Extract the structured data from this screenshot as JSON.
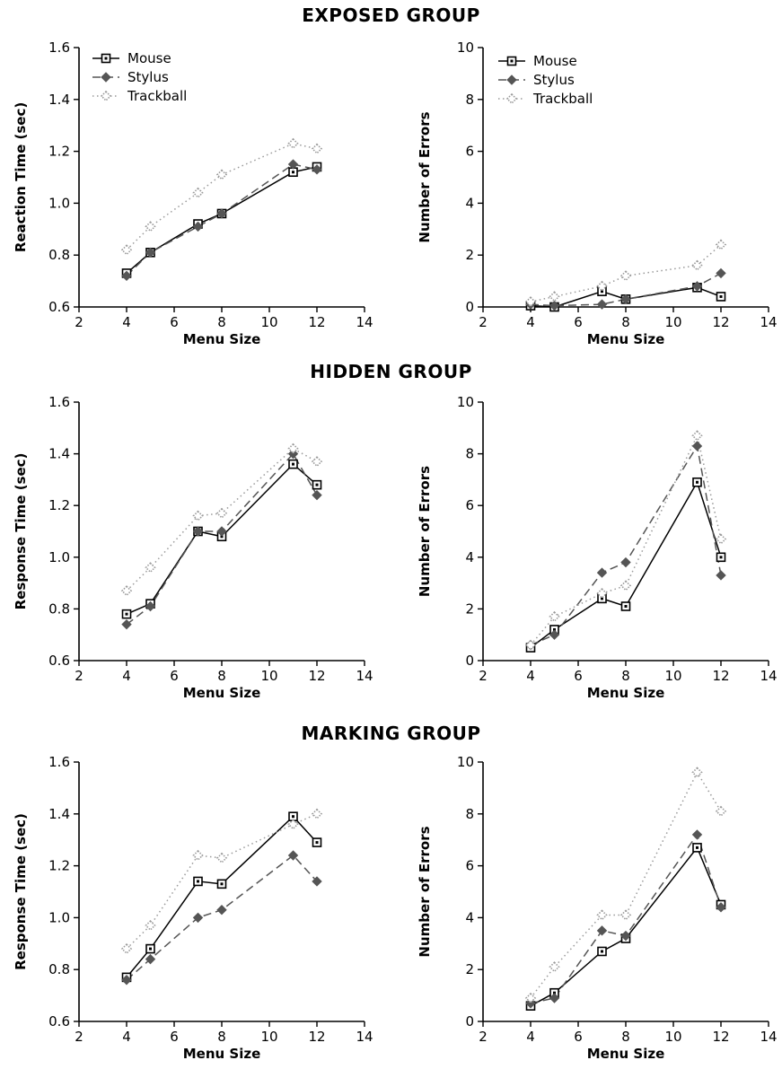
{
  "groups": [
    {
      "title": "EXPOSED GROUP"
    },
    {
      "title": "HIDDEN GROUP"
    },
    {
      "title": "MARKING GROUP"
    }
  ],
  "chart_data": [
    {
      "type": "line",
      "group": "EXPOSED GROUP",
      "xlabel": "Menu Size",
      "ylabel": "Reaction Time (sec)",
      "xlim": [
        2,
        14
      ],
      "ylim": [
        0.6,
        1.6
      ],
      "xticks": [
        "2",
        "4",
        "6",
        "8",
        "10",
        "12",
        "14"
      ],
      "yticks": [
        "0.6",
        "0.8",
        "1.0",
        "1.2",
        "1.4",
        "1.6"
      ],
      "legend": "top-left",
      "x": [
        4,
        5,
        7,
        8,
        11,
        12
      ],
      "series": [
        {
          "name": "Mouse",
          "style": "solid",
          "marker": "square",
          "values": [
            0.73,
            0.81,
            0.92,
            0.96,
            1.12,
            1.14
          ]
        },
        {
          "name": "Stylus",
          "style": "dashed",
          "marker": "diamond",
          "values": [
            0.72,
            0.81,
            0.91,
            0.96,
            1.15,
            1.13
          ]
        },
        {
          "name": "Trackball",
          "style": "dotted",
          "marker": "dotted-diamond",
          "values": [
            0.82,
            0.91,
            1.04,
            1.11,
            1.23,
            1.21
          ]
        }
      ]
    },
    {
      "type": "line",
      "group": "EXPOSED GROUP",
      "xlabel": "Menu Size",
      "ylabel": "Number of Errors",
      "xlim": [
        2,
        14
      ],
      "ylim": [
        0,
        10
      ],
      "xticks": [
        "2",
        "4",
        "6",
        "8",
        "10",
        "12",
        "14"
      ],
      "yticks": [
        "0",
        "2",
        "4",
        "6",
        "8",
        "10"
      ],
      "legend": "top-left",
      "x": [
        4,
        5,
        7,
        8,
        11,
        12
      ],
      "series": [
        {
          "name": "Mouse",
          "style": "solid",
          "marker": "square",
          "values": [
            0.05,
            0.0,
            0.6,
            0.3,
            0.75,
            0.4
          ]
        },
        {
          "name": "Stylus",
          "style": "dashed",
          "marker": "diamond",
          "values": [
            0.1,
            0.05,
            0.1,
            0.3,
            0.8,
            1.3
          ]
        },
        {
          "name": "Trackball",
          "style": "dotted",
          "marker": "dotted-diamond",
          "values": [
            0.2,
            0.4,
            0.8,
            1.2,
            1.6,
            2.4
          ]
        }
      ]
    },
    {
      "type": "line",
      "group": "HIDDEN GROUP",
      "xlabel": "Menu Size",
      "ylabel": "Response Time (sec)",
      "xlim": [
        2,
        14
      ],
      "ylim": [
        0.6,
        1.6
      ],
      "xticks": [
        "2",
        "4",
        "6",
        "8",
        "10",
        "12",
        "14"
      ],
      "yticks": [
        "0.6",
        "0.8",
        "1.0",
        "1.2",
        "1.4",
        "1.6"
      ],
      "legend": "none",
      "x": [
        4,
        5,
        7,
        8,
        11,
        12
      ],
      "series": [
        {
          "name": "Mouse",
          "style": "solid",
          "marker": "square",
          "values": [
            0.78,
            0.82,
            1.1,
            1.08,
            1.36,
            1.28
          ]
        },
        {
          "name": "Stylus",
          "style": "dashed",
          "marker": "diamond",
          "values": [
            0.74,
            0.81,
            1.1,
            1.1,
            1.4,
            1.24
          ]
        },
        {
          "name": "Trackball",
          "style": "dotted",
          "marker": "dotted-diamond",
          "values": [
            0.87,
            0.96,
            1.16,
            1.17,
            1.42,
            1.37
          ]
        }
      ]
    },
    {
      "type": "line",
      "group": "HIDDEN GROUP",
      "xlabel": "Menu Size",
      "ylabel": "Number of Errors",
      "xlim": [
        2,
        14
      ],
      "ylim": [
        0,
        10
      ],
      "xticks": [
        "2",
        "4",
        "6",
        "8",
        "10",
        "12",
        "14"
      ],
      "yticks": [
        "0",
        "2",
        "4",
        "6",
        "8",
        "10"
      ],
      "legend": "none",
      "x": [
        4,
        5,
        7,
        8,
        11,
        12
      ],
      "series": [
        {
          "name": "Mouse",
          "style": "solid",
          "marker": "square",
          "values": [
            0.5,
            1.2,
            2.4,
            2.1,
            6.9,
            4.0
          ]
        },
        {
          "name": "Stylus",
          "style": "dashed",
          "marker": "diamond",
          "values": [
            0.6,
            1.0,
            3.4,
            3.8,
            8.3,
            3.3
          ]
        },
        {
          "name": "Trackball",
          "style": "dotted",
          "marker": "dotted-diamond",
          "values": [
            0.6,
            1.7,
            2.6,
            2.9,
            8.7,
            4.7
          ]
        }
      ]
    },
    {
      "type": "line",
      "group": "MARKING GROUP",
      "xlabel": "Menu Size",
      "ylabel": "Response Time (sec)",
      "xlim": [
        2,
        14
      ],
      "ylim": [
        0.6,
        1.6
      ],
      "xticks": [
        "2",
        "4",
        "6",
        "8",
        "10",
        "12",
        "14"
      ],
      "yticks": [
        "0.6",
        "0.8",
        "1.0",
        "1.2",
        "1.4",
        "1.6"
      ],
      "legend": "none",
      "x": [
        4,
        5,
        7,
        8,
        11,
        12
      ],
      "series": [
        {
          "name": "Mouse",
          "style": "solid",
          "marker": "square",
          "values": [
            0.77,
            0.88,
            1.14,
            1.13,
            1.39,
            1.29
          ]
        },
        {
          "name": "Stylus",
          "style": "dashed",
          "marker": "diamond",
          "values": [
            0.76,
            0.84,
            1.0,
            1.03,
            1.24,
            1.14
          ]
        },
        {
          "name": "Trackball",
          "style": "dotted",
          "marker": "dotted-diamond",
          "values": [
            0.88,
            0.97,
            1.24,
            1.23,
            1.36,
            1.4
          ]
        }
      ]
    },
    {
      "type": "line",
      "group": "MARKING GROUP",
      "xlabel": "Menu Size",
      "ylabel": "Number of Errors",
      "xlim": [
        2,
        14
      ],
      "ylim": [
        0,
        10
      ],
      "xticks": [
        "2",
        "4",
        "6",
        "8",
        "10",
        "12",
        "14"
      ],
      "yticks": [
        "0",
        "2",
        "4",
        "6",
        "8",
        "10"
      ],
      "legend": "none",
      "x": [
        4,
        5,
        7,
        8,
        11,
        12
      ],
      "series": [
        {
          "name": "Mouse",
          "style": "solid",
          "marker": "square",
          "values": [
            0.6,
            1.1,
            2.7,
            3.2,
            6.7,
            4.5
          ]
        },
        {
          "name": "Stylus",
          "style": "dashed",
          "marker": "diamond",
          "values": [
            0.7,
            0.9,
            3.5,
            3.3,
            7.2,
            4.4
          ]
        },
        {
          "name": "Trackball",
          "style": "dotted",
          "marker": "dotted-diamond",
          "values": [
            0.9,
            2.1,
            4.1,
            4.1,
            9.6,
            8.1
          ]
        }
      ]
    }
  ]
}
